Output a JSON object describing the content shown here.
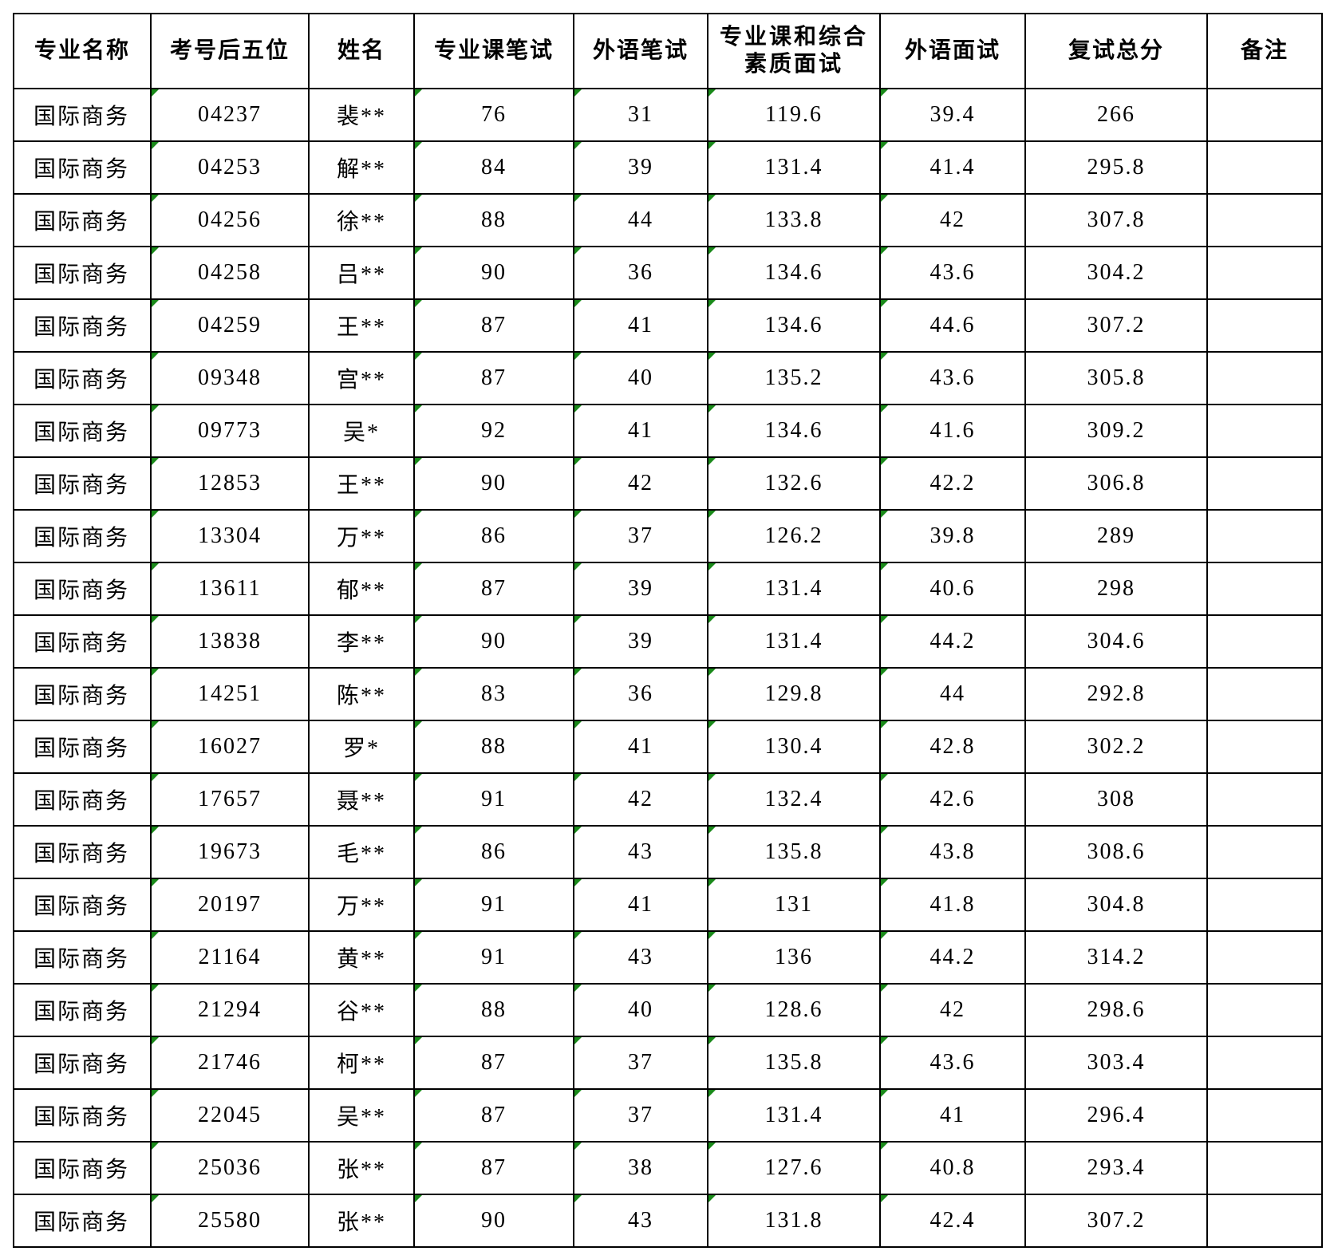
{
  "headers": [
    "专业名称",
    "考号后五位",
    "姓名",
    "专业课笔试",
    "外语笔试",
    "专业课和综合素质面试",
    "外语面试",
    "复试总分",
    "备注"
  ],
  "rows": [
    [
      "国际商务",
      "04237",
      "裴**",
      "76",
      "31",
      "119.6",
      "39.4",
      "266",
      ""
    ],
    [
      "国际商务",
      "04253",
      "解**",
      "84",
      "39",
      "131.4",
      "41.4",
      "295.8",
      ""
    ],
    [
      "国际商务",
      "04256",
      "徐**",
      "88",
      "44",
      "133.8",
      "42",
      "307.8",
      ""
    ],
    [
      "国际商务",
      "04258",
      "吕**",
      "90",
      "36",
      "134.6",
      "43.6",
      "304.2",
      ""
    ],
    [
      "国际商务",
      "04259",
      "王**",
      "87",
      "41",
      "134.6",
      "44.6",
      "307.2",
      ""
    ],
    [
      "国际商务",
      "09348",
      "宫**",
      "87",
      "40",
      "135.2",
      "43.6",
      "305.8",
      ""
    ],
    [
      "国际商务",
      "09773",
      "吴*",
      "92",
      "41",
      "134.6",
      "41.6",
      "309.2",
      ""
    ],
    [
      "国际商务",
      "12853",
      "王**",
      "90",
      "42",
      "132.6",
      "42.2",
      "306.8",
      ""
    ],
    [
      "国际商务",
      "13304",
      "万**",
      "86",
      "37",
      "126.2",
      "39.8",
      "289",
      ""
    ],
    [
      "国际商务",
      "13611",
      "郁**",
      "87",
      "39",
      "131.4",
      "40.6",
      "298",
      ""
    ],
    [
      "国际商务",
      "13838",
      "李**",
      "90",
      "39",
      "131.4",
      "44.2",
      "304.6",
      ""
    ],
    [
      "国际商务",
      "14251",
      "陈**",
      "83",
      "36",
      "129.8",
      "44",
      "292.8",
      ""
    ],
    [
      "国际商务",
      "16027",
      "罗*",
      "88",
      "41",
      "130.4",
      "42.8",
      "302.2",
      ""
    ],
    [
      "国际商务",
      "17657",
      "聂**",
      "91",
      "42",
      "132.4",
      "42.6",
      "308",
      ""
    ],
    [
      "国际商务",
      "19673",
      "毛**",
      "86",
      "43",
      "135.8",
      "43.8",
      "308.6",
      ""
    ],
    [
      "国际商务",
      "20197",
      "万**",
      "91",
      "41",
      "131",
      "41.8",
      "304.8",
      ""
    ],
    [
      "国际商务",
      "21164",
      "黄**",
      "91",
      "43",
      "136",
      "44.2",
      "314.2",
      ""
    ],
    [
      "国际商务",
      "21294",
      "谷**",
      "88",
      "40",
      "128.6",
      "42",
      "298.6",
      ""
    ],
    [
      "国际商务",
      "21746",
      "柯**",
      "87",
      "37",
      "135.8",
      "43.6",
      "303.4",
      ""
    ],
    [
      "国际商务",
      "22045",
      "吴**",
      "87",
      "37",
      "131.4",
      "41",
      "296.4",
      ""
    ],
    [
      "国际商务",
      "25036",
      "张**",
      "87",
      "38",
      "127.6",
      "40.8",
      "293.4",
      ""
    ],
    [
      "国际商务",
      "25580",
      "张**",
      "90",
      "43",
      "131.8",
      "42.4",
      "307.2",
      ""
    ]
  ],
  "colors": {
    "marker": "#1a8a1a"
  }
}
